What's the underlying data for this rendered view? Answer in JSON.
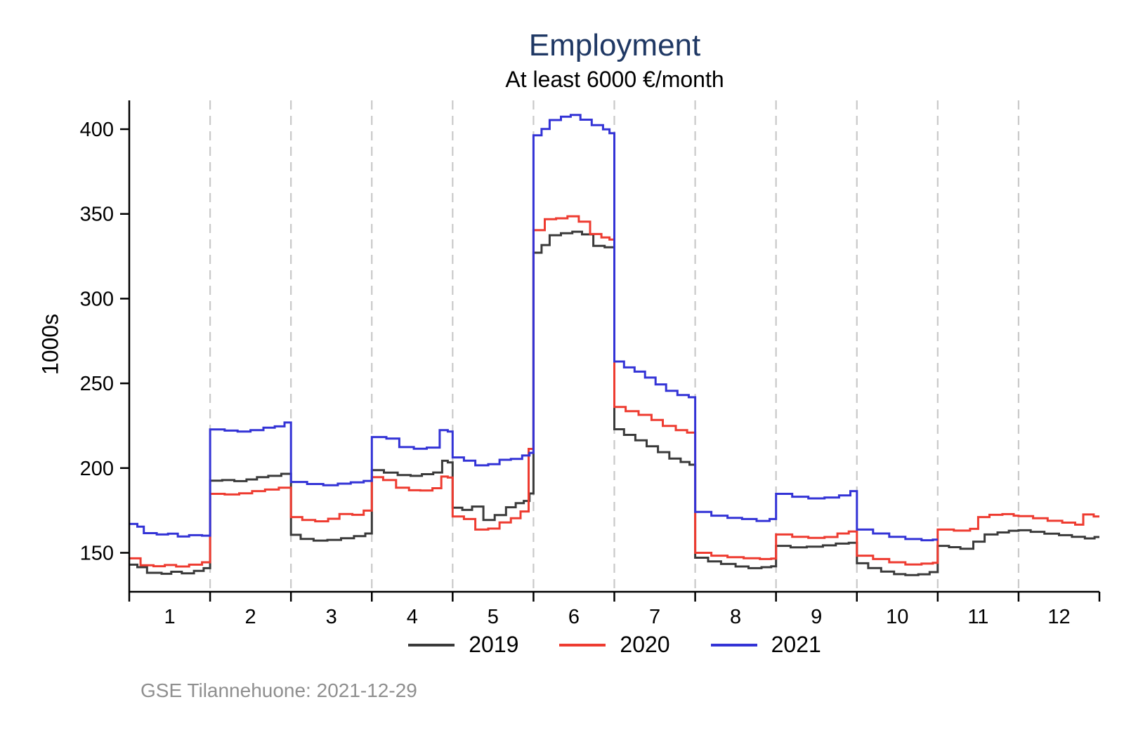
{
  "page": {
    "footer": "GSE Tilannehuone: 2021-12-29"
  },
  "chart_data": {
    "type": "line",
    "step": true,
    "title": "Employment",
    "subtitle": "At least 6000 €/month",
    "xlabel": "",
    "ylabel": "1000s",
    "x_unit": "month (1-12), daily resolution within each month",
    "xlim": [
      0,
      12
    ],
    "ylim": [
      127,
      417
    ],
    "y_ticks": [
      150,
      200,
      250,
      300,
      350,
      400
    ],
    "x_tick_labels": [
      "1",
      "2",
      "3",
      "4",
      "5",
      "6",
      "7",
      "8",
      "9",
      "10",
      "11",
      "12"
    ],
    "grid": "vertical dashed lines at month boundaries",
    "legend_position": "bottom",
    "axis_color": "#000000",
    "gridline_color": "#c9c9c9",
    "title_color": "#1f3864",
    "series": [
      {
        "name": "2019",
        "color": "#3a3a3a",
        "x_end": 12.0,
        "points": [
          [
            0.0,
            143.0
          ],
          [
            0.1,
            141.5
          ],
          [
            0.22,
            138.2
          ],
          [
            0.4,
            137.6
          ],
          [
            0.52,
            138.8
          ],
          [
            0.65,
            137.9
          ],
          [
            0.8,
            139.3
          ],
          [
            0.92,
            140.9
          ],
          [
            1.0,
            192.6
          ],
          [
            1.15,
            192.9
          ],
          [
            1.3,
            192.3
          ],
          [
            1.45,
            193.3
          ],
          [
            1.58,
            194.6
          ],
          [
            1.72,
            195.4
          ],
          [
            1.88,
            196.6
          ],
          [
            2.0,
            160.6
          ],
          [
            2.12,
            158.2
          ],
          [
            2.28,
            157.2
          ],
          [
            2.45,
            157.6
          ],
          [
            2.62,
            158.6
          ],
          [
            2.78,
            159.8
          ],
          [
            2.92,
            161.4
          ],
          [
            3.0,
            198.8
          ],
          [
            3.15,
            197.3
          ],
          [
            3.32,
            195.9
          ],
          [
            3.48,
            195.4
          ],
          [
            3.62,
            196.4
          ],
          [
            3.76,
            197.4
          ],
          [
            3.87,
            204.3
          ],
          [
            3.94,
            203.3
          ],
          [
            4.0,
            176.6
          ],
          [
            4.12,
            175.3
          ],
          [
            4.24,
            177.3
          ],
          [
            4.38,
            169.4
          ],
          [
            4.52,
            172.3
          ],
          [
            4.66,
            176.9
          ],
          [
            4.78,
            179.3
          ],
          [
            4.88,
            180.6
          ],
          [
            4.95,
            185.0
          ],
          [
            5.0,
            327.1
          ],
          [
            5.1,
            331.6
          ],
          [
            5.2,
            337.4
          ],
          [
            5.34,
            338.6
          ],
          [
            5.48,
            339.5
          ],
          [
            5.6,
            337.9
          ],
          [
            5.74,
            331.1
          ],
          [
            5.88,
            330.3
          ],
          [
            6.0,
            222.9
          ],
          [
            6.12,
            219.6
          ],
          [
            6.26,
            216.4
          ],
          [
            6.4,
            212.9
          ],
          [
            6.54,
            209.4
          ],
          [
            6.68,
            205.6
          ],
          [
            6.82,
            203.6
          ],
          [
            6.93,
            202.0
          ],
          [
            7.0,
            147.1
          ],
          [
            7.16,
            144.9
          ],
          [
            7.32,
            143.4
          ],
          [
            7.5,
            141.9
          ],
          [
            7.66,
            140.9
          ],
          [
            7.82,
            141.5
          ],
          [
            7.94,
            142.0
          ],
          [
            8.0,
            154.1
          ],
          [
            8.18,
            153.2
          ],
          [
            8.38,
            153.6
          ],
          [
            8.58,
            154.4
          ],
          [
            8.74,
            155.4
          ],
          [
            8.9,
            155.9
          ],
          [
            9.0,
            143.8
          ],
          [
            9.14,
            141.0
          ],
          [
            9.3,
            138.9
          ],
          [
            9.46,
            137.4
          ],
          [
            9.6,
            136.8
          ],
          [
            9.76,
            137.3
          ],
          [
            9.9,
            138.6
          ],
          [
            10.0,
            154.1
          ],
          [
            10.14,
            153.3
          ],
          [
            10.28,
            152.4
          ],
          [
            10.44,
            156.6
          ],
          [
            10.58,
            160.8
          ],
          [
            10.74,
            162.0
          ],
          [
            10.88,
            163.0
          ],
          [
            11.0,
            163.3
          ],
          [
            11.15,
            162.4
          ],
          [
            11.32,
            161.3
          ],
          [
            11.5,
            160.4
          ],
          [
            11.66,
            159.4
          ],
          [
            11.82,
            158.5
          ],
          [
            11.94,
            159.3
          ]
        ]
      },
      {
        "name": "2020",
        "color": "#ee3b30",
        "x_end": 12.0,
        "points": [
          [
            0.0,
            146.7
          ],
          [
            0.14,
            142.6
          ],
          [
            0.3,
            142.1
          ],
          [
            0.44,
            142.8
          ],
          [
            0.58,
            141.9
          ],
          [
            0.74,
            143.0
          ],
          [
            0.9,
            144.4
          ],
          [
            1.0,
            184.8
          ],
          [
            1.18,
            184.4
          ],
          [
            1.36,
            185.1
          ],
          [
            1.52,
            186.4
          ],
          [
            1.68,
            187.3
          ],
          [
            1.85,
            188.4
          ],
          [
            2.0,
            171.1
          ],
          [
            2.14,
            169.4
          ],
          [
            2.3,
            168.6
          ],
          [
            2.46,
            170.1
          ],
          [
            2.6,
            172.9
          ],
          [
            2.76,
            172.4
          ],
          [
            2.9,
            174.9
          ],
          [
            3.0,
            194.6
          ],
          [
            3.14,
            192.9
          ],
          [
            3.3,
            188.4
          ],
          [
            3.46,
            186.9
          ],
          [
            3.6,
            186.8
          ],
          [
            3.75,
            188.1
          ],
          [
            3.86,
            195.0
          ],
          [
            3.94,
            194.4
          ],
          [
            4.0,
            171.4
          ],
          [
            4.14,
            169.9
          ],
          [
            4.28,
            163.7
          ],
          [
            4.44,
            164.3
          ],
          [
            4.58,
            167.9
          ],
          [
            4.72,
            170.4
          ],
          [
            4.84,
            174.4
          ],
          [
            4.94,
            211.3
          ],
          [
            5.0,
            340.4
          ],
          [
            5.14,
            346.9
          ],
          [
            5.28,
            347.4
          ],
          [
            5.42,
            348.6
          ],
          [
            5.56,
            345.4
          ],
          [
            5.7,
            338.1
          ],
          [
            5.84,
            336.1
          ],
          [
            5.94,
            334.9
          ],
          [
            6.0,
            236.1
          ],
          [
            6.14,
            233.6
          ],
          [
            6.3,
            231.4
          ],
          [
            6.46,
            228.4
          ],
          [
            6.6,
            224.9
          ],
          [
            6.76,
            222.4
          ],
          [
            6.9,
            220.9
          ],
          [
            7.0,
            150.0
          ],
          [
            7.2,
            148.3
          ],
          [
            7.4,
            147.4
          ],
          [
            7.6,
            146.8
          ],
          [
            7.8,
            146.3
          ],
          [
            7.94,
            146.6
          ],
          [
            8.0,
            160.8
          ],
          [
            8.2,
            159.4
          ],
          [
            8.4,
            158.8
          ],
          [
            8.6,
            159.3
          ],
          [
            8.76,
            161.4
          ],
          [
            8.9,
            162.6
          ],
          [
            9.0,
            148.3
          ],
          [
            9.2,
            146.3
          ],
          [
            9.4,
            144.4
          ],
          [
            9.6,
            143.1
          ],
          [
            9.8,
            143.6
          ],
          [
            9.94,
            144.1
          ],
          [
            10.0,
            163.7
          ],
          [
            10.2,
            163.1
          ],
          [
            10.4,
            164.1
          ],
          [
            10.5,
            171.1
          ],
          [
            10.64,
            172.4
          ],
          [
            10.8,
            172.8
          ],
          [
            10.94,
            171.9
          ],
          [
            11.0,
            171.6
          ],
          [
            11.18,
            170.4
          ],
          [
            11.36,
            168.9
          ],
          [
            11.54,
            167.8
          ],
          [
            11.7,
            166.6
          ],
          [
            11.8,
            172.6
          ],
          [
            11.93,
            171.4
          ]
        ]
      },
      {
        "name": "2021",
        "color": "#3333d6",
        "x_end": 10.0,
        "points": [
          [
            0.0,
            167.0
          ],
          [
            0.1,
            165.4
          ],
          [
            0.18,
            161.6
          ],
          [
            0.34,
            160.8
          ],
          [
            0.48,
            161.3
          ],
          [
            0.6,
            159.6
          ],
          [
            0.74,
            160.4
          ],
          [
            0.9,
            160.1
          ],
          [
            1.0,
            222.8
          ],
          [
            1.18,
            222.1
          ],
          [
            1.34,
            221.6
          ],
          [
            1.5,
            222.4
          ],
          [
            1.66,
            223.8
          ],
          [
            1.8,
            224.6
          ],
          [
            1.92,
            226.9
          ],
          [
            2.0,
            191.8
          ],
          [
            2.2,
            190.6
          ],
          [
            2.4,
            189.9
          ],
          [
            2.58,
            190.8
          ],
          [
            2.74,
            191.6
          ],
          [
            2.9,
            192.4
          ],
          [
            3.0,
            218.3
          ],
          [
            3.18,
            217.4
          ],
          [
            3.34,
            212.4
          ],
          [
            3.52,
            211.4
          ],
          [
            3.68,
            212.1
          ],
          [
            3.84,
            222.4
          ],
          [
            3.94,
            221.6
          ],
          [
            4.0,
            206.3
          ],
          [
            4.14,
            204.4
          ],
          [
            4.28,
            201.6
          ],
          [
            4.44,
            202.3
          ],
          [
            4.58,
            204.9
          ],
          [
            4.72,
            205.4
          ],
          [
            4.86,
            207.4
          ],
          [
            4.95,
            209.0
          ],
          [
            5.0,
            396.4
          ],
          [
            5.1,
            400.1
          ],
          [
            5.2,
            405.4
          ],
          [
            5.34,
            407.4
          ],
          [
            5.46,
            408.4
          ],
          [
            5.58,
            405.6
          ],
          [
            5.72,
            402.4
          ],
          [
            5.86,
            399.9
          ],
          [
            5.94,
            397.6
          ],
          [
            6.0,
            262.9
          ],
          [
            6.12,
            259.4
          ],
          [
            6.25,
            256.9
          ],
          [
            6.38,
            253.4
          ],
          [
            6.51,
            249.4
          ],
          [
            6.64,
            245.6
          ],
          [
            6.78,
            243.1
          ],
          [
            6.92,
            241.8
          ],
          [
            7.0,
            174.1
          ],
          [
            7.2,
            171.9
          ],
          [
            7.4,
            170.6
          ],
          [
            7.58,
            169.9
          ],
          [
            7.76,
            168.8
          ],
          [
            7.92,
            169.9
          ],
          [
            8.0,
            184.8
          ],
          [
            8.2,
            183.1
          ],
          [
            8.4,
            182.1
          ],
          [
            8.6,
            182.6
          ],
          [
            8.78,
            183.9
          ],
          [
            8.92,
            186.4
          ],
          [
            9.0,
            163.7
          ],
          [
            9.2,
            161.4
          ],
          [
            9.4,
            159.4
          ],
          [
            9.6,
            158.1
          ],
          [
            9.8,
            157.4
          ],
          [
            9.94,
            157.8
          ]
        ]
      }
    ]
  }
}
